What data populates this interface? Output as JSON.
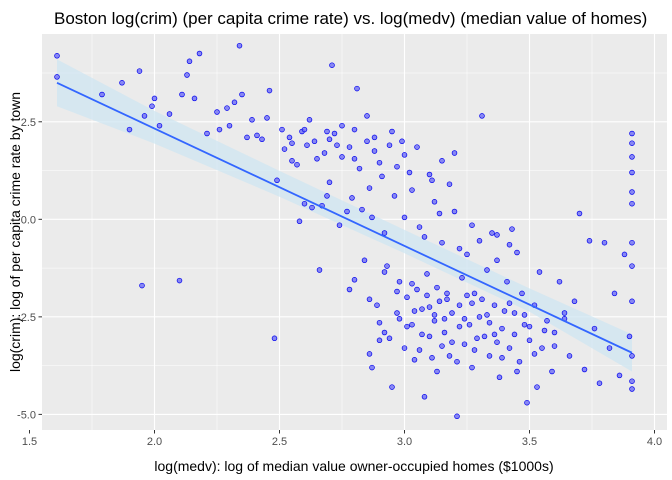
{
  "chart_data": {
    "type": "scatter",
    "title": "Boston log(crim) (per capita crime rate) vs. log(medv) (median value of homes)",
    "xlabel": "log(medv): log of median value owner-occupied homes ($1000s)",
    "ylabel": "log(crim): log of per capita crime rate by town",
    "xlim": [
      1.55,
      4.05
    ],
    "ylim": [
      -5.4,
      4.75
    ],
    "x_ticks": [
      1.5,
      2.0,
      2.5,
      3.0,
      3.5,
      4.0
    ],
    "x_tick_labels": [
      "1.5",
      "2.0",
      "2.5",
      "3.0",
      "3.5",
      "4.0"
    ],
    "y_ticks": [
      -5.0,
      -2.5,
      0.0,
      2.5
    ],
    "y_tick_labels": [
      "-5.0",
      "-2.5",
      "0.0",
      "2.5"
    ],
    "grid": true,
    "colors": {
      "panel_background": "#ebebeb",
      "point_fill": "#6e6ef5",
      "point_stroke": "#0000ee",
      "fit_line": "#3366ff",
      "confidence_band": "#cfe6f2"
    },
    "series": [
      {
        "points": [
          [
            1.61,
            4.19
          ],
          [
            1.61,
            3.65
          ],
          [
            1.79,
            3.2
          ],
          [
            1.87,
            3.5
          ],
          [
            1.9,
            2.3
          ],
          [
            1.94,
            3.8
          ],
          [
            1.95,
            -1.7
          ],
          [
            1.96,
            2.65
          ],
          [
            1.99,
            2.9
          ],
          [
            2.0,
            3.1
          ],
          [
            2.02,
            2.4
          ],
          [
            2.06,
            2.7
          ],
          [
            2.1,
            -1.57
          ],
          [
            2.11,
            3.2
          ],
          [
            2.13,
            3.7
          ],
          [
            2.14,
            4.05
          ],
          [
            2.16,
            3.1
          ],
          [
            2.18,
            4.25
          ],
          [
            2.21,
            2.2
          ],
          [
            2.25,
            2.75
          ],
          [
            2.26,
            2.3
          ],
          [
            2.29,
            2.85
          ],
          [
            2.3,
            2.4
          ],
          [
            2.32,
            3.0
          ],
          [
            2.34,
            4.45
          ],
          [
            2.35,
            3.2
          ],
          [
            2.37,
            2.1
          ],
          [
            2.39,
            2.55
          ],
          [
            2.41,
            2.15
          ],
          [
            2.43,
            2.05
          ],
          [
            2.45,
            2.6
          ],
          [
            2.46,
            3.3
          ],
          [
            2.48,
            -3.05
          ],
          [
            2.49,
            1.0
          ],
          [
            2.51,
            2.3
          ],
          [
            2.52,
            1.8
          ],
          [
            2.54,
            2.1
          ],
          [
            2.55,
            1.5
          ],
          [
            2.57,
            1.4
          ],
          [
            2.59,
            2.25
          ],
          [
            2.6,
            0.4
          ],
          [
            2.61,
            1.9
          ],
          [
            2.63,
            0.3
          ],
          [
            2.64,
            2.0
          ],
          [
            2.66,
            -1.3
          ],
          [
            2.68,
            1.7
          ],
          [
            2.69,
            0.6
          ],
          [
            2.71,
            3.95
          ],
          [
            2.72,
            2.2
          ],
          [
            2.73,
            1.9
          ],
          [
            2.75,
            1.6
          ],
          [
            2.77,
            0.2
          ],
          [
            2.78,
            -1.8
          ],
          [
            2.8,
            2.3
          ],
          [
            2.81,
            3.35
          ],
          [
            2.82,
            1.3
          ],
          [
            2.84,
            -1.05
          ],
          [
            2.85,
            2.65
          ],
          [
            2.86,
            0.8
          ],
          [
            2.87,
            -3.8
          ],
          [
            2.88,
            2.1
          ],
          [
            2.89,
            -2.2
          ],
          [
            2.9,
            -3.1
          ],
          [
            2.91,
            1.1
          ],
          [
            2.92,
            -2.9
          ],
          [
            2.93,
            -1.2
          ],
          [
            2.94,
            1.9
          ],
          [
            2.95,
            -4.3
          ],
          [
            2.96,
            0.6
          ],
          [
            2.97,
            -2.4
          ],
          [
            2.98,
            -1.6
          ],
          [
            2.99,
            2.0
          ],
          [
            3.0,
            -3.3
          ],
          [
            3.01,
            -2.0
          ],
          [
            3.02,
            1.2
          ],
          [
            3.03,
            -2.7
          ],
          [
            3.04,
            -3.6
          ],
          [
            3.05,
            -1.8
          ],
          [
            3.06,
            -0.2
          ],
          [
            3.07,
            -2.3
          ],
          [
            3.08,
            -4.55
          ],
          [
            3.09,
            -1.4
          ],
          [
            3.1,
            -3.0
          ],
          [
            3.11,
            1.0
          ],
          [
            3.12,
            -2.6
          ],
          [
            3.13,
            -3.9
          ],
          [
            3.14,
            -2.1
          ],
          [
            3.15,
            -0.6
          ],
          [
            3.16,
            -2.9
          ],
          [
            3.17,
            -1.9
          ],
          [
            3.18,
            -3.5
          ],
          [
            3.19,
            -2.4
          ],
          [
            3.2,
            1.7
          ],
          [
            3.21,
            -5.05
          ],
          [
            3.22,
            -2.2
          ],
          [
            3.23,
            -1.5
          ],
          [
            3.24,
            -3.2
          ],
          [
            3.25,
            -0.9
          ],
          [
            3.26,
            -2.7
          ],
          [
            3.27,
            -3.8
          ],
          [
            3.28,
            -1.9
          ],
          [
            3.3,
            -2.5
          ],
          [
            3.31,
            2.65
          ],
          [
            3.32,
            -3.0
          ],
          [
            3.33,
            -1.3
          ],
          [
            3.34,
            -3.5
          ],
          [
            3.36,
            -2.2
          ],
          [
            3.37,
            -0.4
          ],
          [
            3.38,
            -4.05
          ],
          [
            3.39,
            -2.8
          ],
          [
            3.41,
            -1.6
          ],
          [
            3.42,
            -3.3
          ],
          [
            3.43,
            -0.25
          ],
          [
            3.44,
            -2.4
          ],
          [
            3.45,
            -3.9
          ],
          [
            3.47,
            -1.9
          ],
          [
            3.48,
            -2.7
          ],
          [
            3.49,
            -4.7
          ],
          [
            3.5,
            -3.1
          ],
          [
            3.52,
            -2.2
          ],
          [
            3.53,
            -4.3
          ],
          [
            3.54,
            -1.35
          ],
          [
            3.55,
            -3.3
          ],
          [
            3.57,
            -2.6
          ],
          [
            3.59,
            -3.9
          ],
          [
            3.6,
            -2.9
          ],
          [
            3.62,
            -1.6
          ],
          [
            3.64,
            -2.4
          ],
          [
            3.66,
            -3.5
          ],
          [
            3.68,
            -2.1
          ],
          [
            3.7,
            0.15
          ],
          [
            3.72,
            -3.85
          ],
          [
            3.74,
            -0.55
          ],
          [
            3.76,
            -2.8
          ],
          [
            3.78,
            -4.2
          ],
          [
            3.8,
            -0.6
          ],
          [
            3.82,
            -3.3
          ],
          [
            3.84,
            -1.9
          ],
          [
            3.86,
            -4.0
          ],
          [
            3.88,
            -0.9
          ],
          [
            3.9,
            -3.0
          ],
          [
            3.91,
            2.2
          ],
          [
            3.91,
            1.95
          ],
          [
            3.91,
            1.6
          ],
          [
            3.91,
            1.2
          ],
          [
            3.91,
            0.7
          ],
          [
            3.91,
            0.4
          ],
          [
            3.91,
            -0.6
          ],
          [
            3.91,
            -1.2
          ],
          [
            3.91,
            -2.1
          ],
          [
            3.91,
            -3.5
          ],
          [
            3.91,
            -4.15
          ],
          [
            3.91,
            -4.35
          ],
          [
            2.6,
            2.3
          ],
          [
            2.65,
            1.55
          ],
          [
            2.7,
            2.05
          ],
          [
            2.75,
            2.4
          ],
          [
            2.8,
            1.55
          ],
          [
            2.85,
            2.0
          ],
          [
            2.9,
            1.45
          ],
          [
            2.95,
            2.25
          ],
          [
            3.0,
            1.65
          ],
          [
            3.05,
            1.85
          ],
          [
            3.1,
            1.15
          ],
          [
            3.15,
            1.5
          ],
          [
            3.18,
            0.9
          ],
          [
            2.58,
            -0.05
          ],
          [
            2.67,
            0.35
          ],
          [
            2.74,
            -0.15
          ],
          [
            2.83,
            0.25
          ],
          [
            2.92,
            -0.35
          ],
          [
            3.0,
            0.05
          ],
          [
            3.08,
            -0.45
          ],
          [
            3.14,
            0.15
          ],
          [
            3.22,
            -0.75
          ],
          [
            3.3,
            -0.55
          ],
          [
            3.37,
            -1.05
          ],
          [
            3.45,
            -0.85
          ],
          [
            2.8,
            -1.55
          ],
          [
            2.86,
            -2.05
          ],
          [
            2.92,
            -1.35
          ],
          [
            2.98,
            -2.55
          ],
          [
            3.03,
            -1.65
          ],
          [
            3.07,
            -2.95
          ],
          [
            3.1,
            -2.25
          ],
          [
            3.13,
            -1.75
          ],
          [
            3.16,
            -2.55
          ],
          [
            3.19,
            -3.15
          ],
          [
            3.22,
            -2.75
          ],
          [
            3.25,
            -1.95
          ],
          [
            3.28,
            -3.35
          ],
          [
            3.31,
            -2.05
          ],
          [
            3.34,
            -2.65
          ],
          [
            3.37,
            -3.15
          ],
          [
            3.4,
            -2.35
          ],
          [
            3.44,
            -2.95
          ],
          [
            3.48,
            -2.45
          ],
          [
            3.52,
            -3.45
          ],
          [
            3.56,
            -2.85
          ],
          [
            3.6,
            -3.25
          ],
          [
            3.64,
            -2.55
          ],
          [
            2.86,
            -3.45
          ],
          [
            2.9,
            -2.65
          ],
          [
            2.94,
            -3.05
          ],
          [
            2.97,
            -1.85
          ],
          [
            3.01,
            -2.75
          ],
          [
            3.04,
            -2.35
          ],
          [
            3.06,
            -3.35
          ],
          [
            3.09,
            -1.95
          ],
          [
            3.11,
            -3.55
          ],
          [
            3.12,
            -2.45
          ],
          [
            3.15,
            -3.25
          ],
          [
            3.17,
            -2.05
          ],
          [
            3.21,
            -3.65
          ],
          [
            3.24,
            -2.55
          ],
          [
            3.27,
            -2.15
          ],
          [
            3.29,
            -3.05
          ],
          [
            3.33,
            -2.45
          ],
          [
            3.36,
            -2.95
          ],
          [
            3.39,
            -3.55
          ],
          [
            3.42,
            -2.15
          ],
          [
            3.46,
            -3.65
          ],
          [
            3.5,
            -2.75
          ],
          [
            2.55,
            1.95
          ],
          [
            2.62,
            2.55
          ],
          [
            2.69,
            2.25
          ],
          [
            2.78,
            1.85
          ],
          [
            2.88,
            1.75
          ],
          [
            2.97,
            1.35
          ],
          [
            3.03,
            0.75
          ],
          [
            3.12,
            0.45
          ],
          [
            3.2,
            0.2
          ],
          [
            3.27,
            -0.15
          ],
          [
            3.35,
            -0.35
          ],
          [
            3.42,
            -0.65
          ],
          [
            2.7,
            0.95
          ],
          [
            2.79,
            0.55
          ],
          [
            2.87,
            0.05
          ]
        ]
      }
    ],
    "fit_line": {
      "x": [
        1.61,
        3.91
      ],
      "y": [
        3.5,
        -3.42
      ]
    },
    "confidence_band": {
      "x": [
        1.61,
        2.0,
        2.5,
        3.0,
        3.5,
        3.91
      ],
      "upper": [
        4.1,
        2.78,
        1.24,
        -0.27,
        -1.77,
        -2.95
      ],
      "lower": [
        2.9,
        1.94,
        0.58,
        -0.87,
        -2.37,
        -3.9
      ]
    }
  }
}
